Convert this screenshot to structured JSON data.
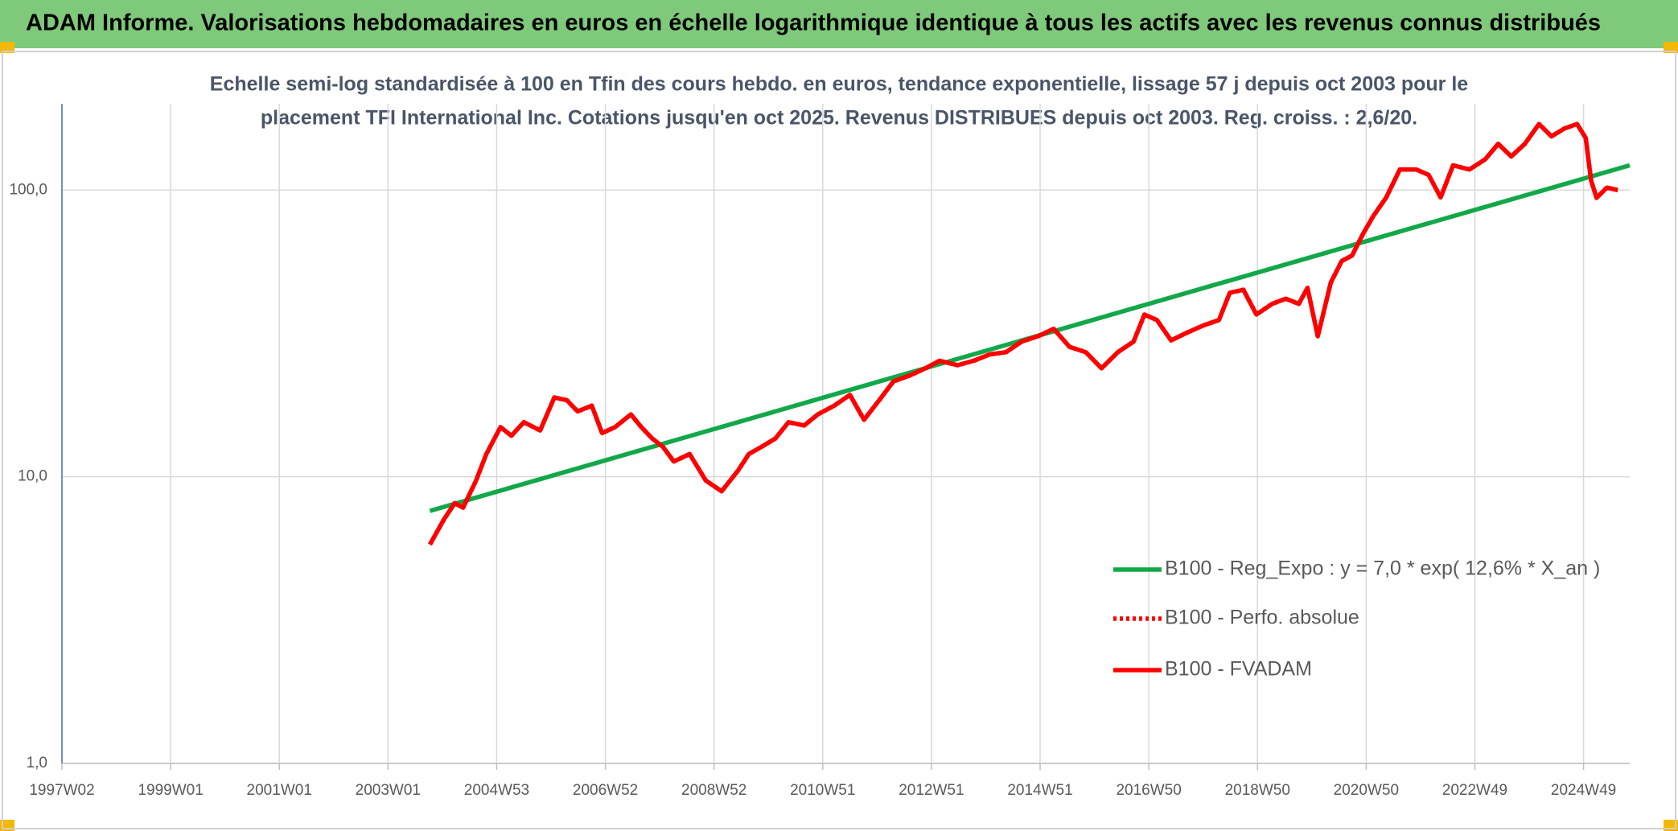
{
  "chart_data": {
    "type": "line",
    "title": "ADAM Informe. Valorisations hebdomadaires en euros en échelle logarithmique identique à tous les actifs avec les revenus connus distribués",
    "subtitle": [
      "Echelle semi-log standardisée à 100 en Tfin des cours hebdo. en euros, tendance exponentielle, lissage 57 j depuis oct 2003 pour le",
      "placement TFI International Inc. Cotations jusqu'en oct 2025. Revenus DISTRIBUES depuis oct 2003. Reg. croiss. : 2,6/20."
    ],
    "log_y": true,
    "grid": true,
    "legend": "lower right",
    "xlim": [
      1997.0,
      2025.85
    ],
    "xticks": [
      {
        "value": 1997,
        "label": "1997W02"
      },
      {
        "value": 1999,
        "label": "1999W01"
      },
      {
        "value": 2001,
        "label": "2001W01"
      },
      {
        "value": 2003,
        "label": "2003W01"
      },
      {
        "value": 2005,
        "label": "2004W53"
      },
      {
        "value": 2007,
        "label": "2006W52"
      },
      {
        "value": 2009,
        "label": "2008W52"
      },
      {
        "value": 2011,
        "label": "2010W51"
      },
      {
        "value": 2013,
        "label": "2012W51"
      },
      {
        "value": 2015,
        "label": "2014W51"
      },
      {
        "value": 2017,
        "label": "2016W50"
      },
      {
        "value": 2019,
        "label": "2018W50"
      },
      {
        "value": 2021,
        "label": "2020W50"
      },
      {
        "value": 2023,
        "label": "2022W49"
      },
      {
        "value": 2025,
        "label": "2024W49"
      }
    ],
    "ylim": [
      1,
      200
    ],
    "yticks": [
      {
        "value": 1,
        "label": "1,0"
      },
      {
        "value": 10,
        "label": "10,0"
      },
      {
        "value": 100,
        "label": "100,0"
      }
    ],
    "x": [
      2003.77,
      2004.03,
      2004.23,
      2004.38,
      2004.62,
      2004.81,
      2005.07,
      2005.27,
      2005.5,
      2005.8,
      2006.06,
      2006.29,
      2006.49,
      2006.75,
      2006.94,
      2007.18,
      2007.47,
      2007.66,
      2007.86,
      2008.06,
      2008.26,
      2008.55,
      2008.85,
      2009.14,
      2009.44,
      2009.64,
      2009.87,
      2010.13,
      2010.37,
      2010.66,
      2010.91,
      2011.21,
      2011.5,
      2011.76,
      2012.04,
      2012.3,
      2012.59,
      2012.89,
      2013.15,
      2013.48,
      2013.78,
      2014.07,
      2014.37,
      2014.66,
      2014.96,
      2015.25,
      2015.54,
      2015.84,
      2016.13,
      2016.43,
      2016.72,
      2016.92,
      2017.15,
      2017.41,
      2017.7,
      2018.0,
      2018.29,
      2018.49,
      2018.74,
      2018.98,
      2019.27,
      2019.52,
      2019.76,
      2019.92,
      2020.11,
      2020.35,
      2020.55,
      2020.74,
      2020.94,
      2021.13,
      2021.37,
      2021.62,
      2021.92,
      2022.15,
      2022.37,
      2022.6,
      2022.9,
      2023.19,
      2023.43,
      2023.67,
      2023.92,
      2024.18,
      2024.41,
      2024.65,
      2024.88,
      2025.04,
      2025.14,
      2025.24,
      2025.43,
      2025.63
    ],
    "series": [
      {
        "name": "B100 - Reg_Expo : y = 7,0 * exp( 12,6% *  X_an )",
        "color": "#12a84a",
        "dash": "solid",
        "x": [
          2003.77,
          2025.85
        ],
        "values": [
          7.6,
          122
        ]
      },
      {
        "name": "B100 - Perfo. absolue",
        "color": "#ff0000",
        "dash": "dotted",
        "values": [
          5.8,
          7.1,
          8.1,
          7.8,
          9.7,
          12.0,
          14.9,
          13.9,
          15.5,
          14.5,
          18.9,
          18.5,
          16.9,
          17.7,
          14.2,
          14.9,
          16.5,
          14.9,
          13.6,
          12.7,
          11.3,
          12.0,
          9.7,
          8.9,
          10.5,
          12.0,
          12.7,
          13.6,
          15.5,
          15.1,
          16.5,
          17.7,
          19.3,
          15.8,
          18.5,
          21.5,
          22.5,
          23.9,
          25.4,
          24.5,
          25.4,
          26.7,
          27.2,
          29.6,
          30.9,
          32.8,
          28.4,
          27.2,
          23.9,
          27.2,
          29.6,
          36.8,
          35.2,
          29.9,
          31.8,
          33.7,
          35.2,
          43.8,
          44.9,
          36.8,
          40.1,
          41.8,
          40.1,
          45.6,
          30.9,
          47.6,
          56.6,
          59.1,
          70.2,
          81.1,
          94.3,
          118,
          118,
          113,
          94.3,
          122,
          118,
          128,
          145,
          131,
          145,
          170,
          154,
          164,
          170,
          152,
          108,
          94,
          102,
          100
        ]
      },
      {
        "name": "B100 - FVADAM",
        "color": "#ff0000",
        "dash": "solid",
        "values": [
          5.8,
          7.1,
          8.1,
          7.8,
          9.7,
          12.0,
          14.9,
          13.9,
          15.5,
          14.5,
          18.9,
          18.5,
          16.9,
          17.7,
          14.2,
          14.9,
          16.5,
          14.9,
          13.6,
          12.7,
          11.3,
          12.0,
          9.7,
          8.9,
          10.5,
          12.0,
          12.7,
          13.6,
          15.5,
          15.1,
          16.5,
          17.7,
          19.3,
          15.8,
          18.5,
          21.5,
          22.5,
          23.9,
          25.4,
          24.5,
          25.4,
          26.7,
          27.2,
          29.6,
          30.9,
          32.8,
          28.4,
          27.2,
          23.9,
          27.2,
          29.6,
          36.8,
          35.2,
          29.9,
          31.8,
          33.7,
          35.2,
          43.8,
          44.9,
          36.8,
          40.1,
          41.8,
          40.1,
          45.6,
          30.9,
          47.6,
          56.6,
          59.1,
          70.2,
          81.1,
          94.3,
          118,
          118,
          113,
          94.3,
          122,
          118,
          128,
          145,
          131,
          145,
          170,
          154,
          164,
          170,
          152,
          108,
          94,
          102,
          100
        ]
      }
    ]
  }
}
